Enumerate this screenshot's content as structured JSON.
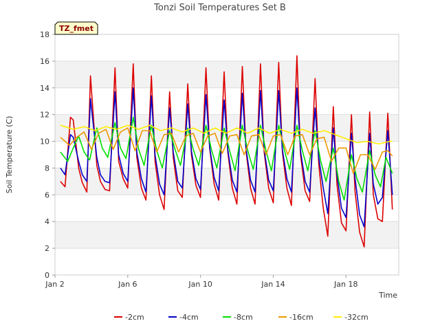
{
  "chart_data": {
    "type": "line",
    "title": "Tonzi Soil Temperatures Set B",
    "xlabel": "Time",
    "ylabel": "Soil Temperature (C)",
    "badge": "TZ_fmet",
    "xlim": [
      2,
      20.9
    ],
    "ylim": [
      0,
      18
    ],
    "y_ticks": [
      0,
      2,
      4,
      6,
      8,
      10,
      12,
      14,
      16,
      18
    ],
    "x_ticks": [
      {
        "value": 2,
        "label": "Jan 2"
      },
      {
        "value": 6,
        "label": "Jan 6"
      },
      {
        "value": 10,
        "label": "Jan 10"
      },
      {
        "value": 14,
        "label": "Jan 14"
      },
      {
        "value": 18,
        "label": "Jan 18"
      }
    ],
    "grid": "horizontal bands",
    "legend_position": "bottom",
    "series": [
      {
        "name": "-2cm",
        "color": "#dd0000",
        "x": [
          2.3,
          2.55,
          2.85,
          3.0,
          3.3,
          3.5,
          3.75,
          3.95,
          4.3,
          4.5,
          4.75,
          5.0,
          5.3,
          5.5,
          5.75,
          6.0,
          6.3,
          6.5,
          6.75,
          7.0,
          7.3,
          7.5,
          7.75,
          8.0,
          8.3,
          8.5,
          8.75,
          9.0,
          9.3,
          9.5,
          9.75,
          10.0,
          10.3,
          10.5,
          10.75,
          11.0,
          11.3,
          11.5,
          11.75,
          12.0,
          12.3,
          12.5,
          12.75,
          13.0,
          13.3,
          13.5,
          13.75,
          14.0,
          14.3,
          14.5,
          14.75,
          15.0,
          15.3,
          15.5,
          15.75,
          16.0,
          16.3,
          16.5,
          16.75,
          17.0,
          17.3,
          17.5,
          17.75,
          18.0,
          18.3,
          18.5,
          18.75,
          19.0,
          19.3,
          19.5,
          19.75,
          20.0,
          20.3,
          20.55
        ],
        "y": [
          7.0,
          6.6,
          11.8,
          11.6,
          8.0,
          6.9,
          6.2,
          14.9,
          8.2,
          7.0,
          6.4,
          6.3,
          15.5,
          8.5,
          7.2,
          6.5,
          15.8,
          8.8,
          6.5,
          5.6,
          14.9,
          8.5,
          6.0,
          4.9,
          13.7,
          8.8,
          6.3,
          5.8,
          14.3,
          9.0,
          6.7,
          5.8,
          15.5,
          9.5,
          6.8,
          5.6,
          15.2,
          9.2,
          6.5,
          5.3,
          15.6,
          9.3,
          6.5,
          5.3,
          15.8,
          9.2,
          6.5,
          5.4,
          15.9,
          9.2,
          6.5,
          5.2,
          16.4,
          9.0,
          6.3,
          5.5,
          14.7,
          8.3,
          5.0,
          2.9,
          12.6,
          6.8,
          3.9,
          3.3,
          12.0,
          6.2,
          3.2,
          2.1,
          12.2,
          6.0,
          4.2,
          4.0,
          12.1,
          4.9
        ]
      },
      {
        "name": "-4cm",
        "color": "#0000cc",
        "x": [
          2.3,
          2.55,
          2.85,
          3.0,
          3.3,
          3.5,
          3.75,
          3.95,
          4.3,
          4.5,
          4.75,
          5.0,
          5.3,
          5.5,
          5.75,
          6.0,
          6.3,
          6.5,
          6.75,
          7.0,
          7.3,
          7.5,
          7.75,
          8.0,
          8.3,
          8.5,
          8.75,
          9.0,
          9.3,
          9.5,
          9.75,
          10.0,
          10.3,
          10.5,
          10.75,
          11.0,
          11.3,
          11.5,
          11.75,
          12.0,
          12.3,
          12.5,
          12.75,
          13.0,
          13.3,
          13.5,
          13.75,
          14.0,
          14.3,
          14.5,
          14.75,
          15.0,
          15.3,
          15.5,
          15.75,
          16.0,
          16.3,
          16.5,
          16.75,
          17.0,
          17.3,
          17.5,
          17.75,
          18.0,
          18.3,
          18.5,
          18.75,
          19.0,
          19.3,
          19.5,
          19.75,
          20.0,
          20.3,
          20.55
        ],
        "y": [
          8.0,
          7.5,
          10.5,
          10.3,
          8.5,
          7.5,
          7.0,
          13.2,
          8.8,
          7.5,
          7.0,
          6.9,
          13.7,
          9.0,
          7.6,
          7.0,
          14.0,
          9.2,
          7.2,
          6.2,
          13.4,
          9.0,
          6.8,
          6.0,
          12.5,
          9.2,
          7.0,
          6.5,
          12.8,
          9.3,
          7.2,
          6.4,
          13.5,
          9.6,
          7.3,
          6.3,
          13.1,
          9.4,
          7.1,
          6.2,
          13.6,
          9.5,
          7.1,
          6.2,
          13.8,
          9.4,
          7.1,
          6.3,
          13.8,
          9.4,
          7.2,
          6.2,
          14.0,
          9.3,
          7.0,
          6.2,
          12.5,
          8.8,
          6.5,
          4.6,
          11.0,
          7.5,
          5.0,
          4.3,
          10.6,
          7.2,
          4.5,
          3.6,
          10.6,
          6.8,
          5.3,
          5.8,
          10.8,
          6.0
        ]
      },
      {
        "name": "-8cm",
        "color": "#00dd00",
        "x": [
          2.3,
          2.7,
          3.0,
          3.3,
          3.6,
          3.9,
          4.3,
          4.6,
          4.9,
          5.3,
          5.6,
          5.9,
          6.3,
          6.6,
          6.9,
          7.3,
          7.6,
          7.9,
          8.3,
          8.6,
          8.9,
          9.3,
          9.6,
          9.9,
          10.3,
          10.6,
          10.9,
          11.3,
          11.6,
          11.9,
          12.3,
          12.6,
          12.9,
          13.3,
          13.6,
          13.9,
          14.3,
          14.6,
          14.9,
          15.3,
          15.6,
          15.9,
          16.3,
          16.6,
          16.9,
          17.3,
          17.6,
          17.9,
          18.3,
          18.6,
          18.9,
          19.3,
          19.6,
          19.9,
          20.2,
          20.55
        ],
        "y": [
          9.2,
          8.5,
          9.5,
          10.4,
          9.2,
          8.6,
          11.0,
          9.5,
          8.8,
          11.4,
          9.5,
          8.7,
          11.8,
          9.4,
          8.2,
          11.2,
          9.3,
          8.0,
          10.8,
          9.4,
          8.2,
          11.0,
          9.4,
          8.2,
          11.2,
          9.4,
          8.0,
          11.0,
          9.3,
          7.8,
          11.2,
          9.3,
          7.9,
          11.2,
          9.3,
          7.8,
          11.2,
          9.4,
          7.9,
          11.2,
          9.3,
          7.8,
          10.8,
          8.6,
          7.0,
          9.5,
          7.0,
          5.6,
          9.0,
          7.2,
          6.2,
          9.3,
          7.5,
          6.6,
          8.8,
          7.6
        ]
      },
      {
        "name": "-16cm",
        "color": "#ee9900",
        "x": [
          2.3,
          2.8,
          3.2,
          3.6,
          4.0,
          4.4,
          4.8,
          5.2,
          5.6,
          6.0,
          6.4,
          6.8,
          7.2,
          7.6,
          8.0,
          8.4,
          8.8,
          9.2,
          9.6,
          10.0,
          10.4,
          10.8,
          11.2,
          11.6,
          12.0,
          12.4,
          12.8,
          13.2,
          13.6,
          14.0,
          14.4,
          14.8,
          15.2,
          15.6,
          16.0,
          16.4,
          16.8,
          17.2,
          17.6,
          18.0,
          18.4,
          18.8,
          19.2,
          19.6,
          20.0,
          20.3,
          20.55
        ],
        "y": [
          10.3,
          9.7,
          10.3,
          10.7,
          9.4,
          10.6,
          10.9,
          9.4,
          10.7,
          11.0,
          9.3,
          10.8,
          10.8,
          9.2,
          10.5,
          10.6,
          9.2,
          10.4,
          10.6,
          9.2,
          10.4,
          10.6,
          9.1,
          10.4,
          10.5,
          9.0,
          10.4,
          10.5,
          9.0,
          10.4,
          10.5,
          9.0,
          10.4,
          10.5,
          9.0,
          10.2,
          10.3,
          8.5,
          9.5,
          9.5,
          7.6,
          9.0,
          9.0,
          7.9,
          9.2,
          9.3,
          8.9
        ]
      },
      {
        "name": "-32cm",
        "color": "#ffee00",
        "x": [
          2.3,
          3.0,
          3.6,
          4.2,
          4.8,
          5.4,
          6.0,
          6.6,
          7.2,
          7.8,
          8.4,
          9.0,
          9.6,
          10.2,
          10.8,
          11.4,
          12.0,
          12.6,
          13.2,
          13.8,
          14.4,
          15.0,
          15.6,
          16.2,
          16.8,
          17.4,
          18.0,
          18.6,
          19.2,
          19.8,
          20.4,
          20.55
        ],
        "y": [
          11.2,
          10.9,
          11.1,
          10.8,
          11.1,
          10.9,
          11.2,
          10.9,
          11.2,
          10.8,
          11.0,
          10.7,
          11.0,
          10.6,
          11.0,
          10.6,
          11.0,
          10.6,
          11.0,
          10.6,
          10.9,
          10.6,
          10.9,
          10.6,
          10.8,
          10.5,
          10.2,
          9.9,
          10.0,
          9.8,
          10.0,
          10.0
        ]
      }
    ]
  }
}
